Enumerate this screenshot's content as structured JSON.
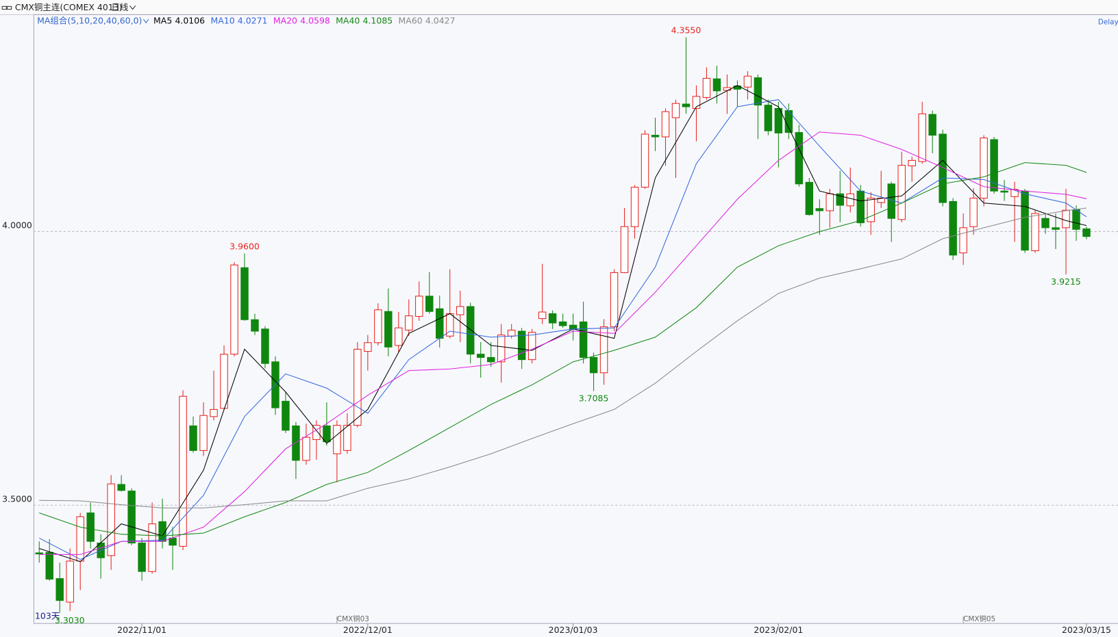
{
  "chart_data": {
    "type": "candlestick",
    "title": "CMX铜主连(COMEX 4013)",
    "period": "日线",
    "indicator": "MA组合(5,10,20,40,60,0)",
    "status": "Delay",
    "count_label": "103天",
    "up_color": "#e8231f",
    "down_color": "#0f870f",
    "ylim": [
      3.284,
      4.397
    ],
    "yticks": [
      {
        "value": 4,
        "label": "4.0000"
      },
      {
        "value": 3.5,
        "label": "3.5000"
      }
    ],
    "grid": true,
    "categories": [
      null,
      null,
      null,
      null,
      null,
      null,
      null,
      null,
      null,
      null,
      "2022/11/01",
      null,
      null,
      null,
      null,
      null,
      null,
      null,
      null,
      null,
      null,
      null,
      null,
      null,
      null,
      null,
      null,
      null,
      null,
      null,
      null,
      null,
      "2022/12/01",
      null,
      null,
      null,
      null,
      null,
      null,
      null,
      null,
      null,
      null,
      null,
      null,
      null,
      null,
      null,
      null,
      null,
      null,
      null,
      "2023/01/03",
      null,
      null,
      null,
      null,
      null,
      null,
      null,
      null,
      null,
      null,
      null,
      null,
      null,
      null,
      null,
      null,
      null,
      null,
      null,
      "2023/02/01",
      null,
      null,
      null,
      null,
      null,
      null,
      null,
      null,
      null,
      null,
      null,
      null,
      null,
      null,
      null,
      null,
      null,
      null,
      null,
      null,
      null,
      null,
      null,
      null,
      null,
      null,
      null,
      null,
      null,
      "2023/03/15"
    ],
    "open": [
      3.413,
      3.414,
      3.366,
      3.323,
      3.398,
      3.486,
      3.431,
      3.408,
      3.538,
      3.526,
      3.431,
      3.379,
      3.47,
      3.44,
      3.425,
      3.645,
      3.6,
      3.662,
      3.677,
      3.776,
      3.934,
      3.839,
      3.822,
      3.762,
      3.69,
      3.645,
      3.582,
      3.62,
      3.645,
      3.594,
      3.6,
      3.646,
      3.781,
      3.797,
      3.854,
      3.792,
      3.82,
      3.845,
      3.882,
      3.859,
      3.809,
      3.848,
      3.863,
      3.776,
      3.77,
      3.762,
      3.809,
      3.818,
      3.766,
      3.841,
      3.85,
      3.835,
      3.829,
      3.835,
      3.77,
      3.742,
      3.826,
      3.925,
      4.009,
      4.081,
      4.176,
      4.173,
      4.208,
      4.233,
      4.225,
      4.245,
      4.279,
      4.258,
      4.266,
      4.264,
      4.281,
      4.231,
      4.225,
      4.221,
      4.181,
      4.09,
      4.042,
      4.038,
      4.069,
      4.047,
      4.074,
      4.018,
      4.053,
      4.087,
      4.022,
      4.12,
      4.128,
      4.214,
      4.178,
      4.055,
      3.961,
      4.009,
      4.061,
      4.168,
      4.074,
      4.064,
      4.074,
      3.965,
      4.024,
      4.007,
      4.007,
      4.04,
      4.005
    ],
    "high": [
      3.434,
      3.438,
      3.395,
      3.421,
      3.486,
      3.505,
      3.447,
      3.555,
      3.555,
      3.531,
      3.44,
      3.505,
      3.512,
      3.46,
      3.71,
      3.662,
      3.688,
      3.746,
      3.792,
      3.944,
      3.96,
      3.85,
      3.827,
      3.772,
      3.707,
      3.652,
      3.649,
      3.655,
      3.688,
      3.655,
      3.668,
      3.798,
      3.811,
      3.869,
      3.896,
      3.853,
      3.876,
      3.909,
      3.926,
      3.883,
      3.931,
      3.892,
      3.87,
      3.798,
      3.798,
      3.831,
      3.831,
      3.824,
      3.822,
      3.941,
      3.856,
      3.85,
      3.85,
      3.872,
      3.779,
      3.84,
      3.931,
      4.043,
      4.085,
      4.185,
      4.208,
      4.225,
      4.241,
      4.355,
      4.267,
      4.3,
      4.303,
      4.287,
      4.276,
      4.293,
      4.287,
      4.241,
      4.237,
      4.234,
      4.195,
      4.098,
      4.059,
      4.078,
      4.111,
      4.117,
      4.085,
      4.072,
      4.111,
      4.091,
      4.146,
      4.137,
      4.237,
      4.221,
      4.186,
      4.061,
      4.033,
      4.079,
      4.176,
      4.173,
      4.094,
      4.091,
      4.078,
      4.039,
      4.033,
      4.033,
      4.078,
      4.048,
      4.009
    ],
    "low": [
      3.395,
      3.362,
      3.303,
      3.307,
      3.345,
      3.421,
      3.366,
      3.382,
      3.525,
      3.427,
      3.362,
      3.375,
      3.421,
      3.382,
      3.418,
      3.596,
      3.59,
      3.655,
      3.675,
      3.772,
      3.837,
      3.811,
      3.75,
      3.665,
      3.632,
      3.548,
      3.574,
      3.583,
      3.609,
      3.542,
      3.594,
      3.642,
      3.746,
      3.792,
      3.772,
      3.779,
      3.809,
      3.837,
      3.85,
      3.788,
      3.805,
      3.798,
      3.759,
      3.733,
      3.753,
      3.724,
      3.805,
      3.749,
      3.759,
      3.831,
      3.822,
      3.824,
      3.801,
      3.759,
      3.7085,
      3.72,
      3.818,
      3.924,
      3.987,
      4.078,
      4.147,
      4.12,
      4.098,
      4.215,
      4.165,
      4.241,
      4.234,
      4.215,
      4.228,
      4.241,
      4.169,
      4.176,
      4.117,
      4.169,
      4.082,
      4.029,
      3.994,
      4.007,
      4.017,
      4.035,
      4.009,
      3.994,
      4.043,
      3.981,
      4.017,
      4.091,
      4.124,
      4.143,
      4.046,
      3.948,
      3.939,
      3.994,
      4.046,
      4.069,
      4.056,
      3.981,
      3.961,
      3.961,
      3.996,
      3.968,
      3.9215,
      3.983,
      3.986
    ],
    "close": [
      3.411,
      3.365,
      3.326,
      3.398,
      3.479,
      3.434,
      3.404,
      3.539,
      3.527,
      3.431,
      3.379,
      3.466,
      3.434,
      3.427,
      3.699,
      3.6,
      3.664,
      3.675,
      3.776,
      3.939,
      3.839,
      3.818,
      3.759,
      3.678,
      3.637,
      3.582,
      3.624,
      3.646,
      3.616,
      3.646,
      3.646,
      3.785,
      3.797,
      3.857,
      3.789,
      3.824,
      3.846,
      3.882,
      3.854,
      3.805,
      3.85,
      3.863,
      3.776,
      3.77,
      3.762,
      3.811,
      3.82,
      3.766,
      3.816,
      3.853,
      3.833,
      3.828,
      3.822,
      3.77,
      3.742,
      3.826,
      3.925,
      4.009,
      4.081,
      4.178,
      4.173,
      4.219,
      4.234,
      4.228,
      4.247,
      4.28,
      4.257,
      4.263,
      4.26,
      4.284,
      4.231,
      4.184,
      4.18,
      4.181,
      4.087,
      4.031,
      4.038,
      4.069,
      4.048,
      4.069,
      4.016,
      4.061,
      4.061,
      4.024,
      4.121,
      4.13,
      4.215,
      4.176,
      4.053,
      3.957,
      4.007,
      4.061,
      4.171,
      4.074,
      4.072,
      4.077,
      3.966,
      4.033,
      4.007,
      4.004,
      4.039,
      4.004,
      3.991
    ],
    "ma": [
      {
        "name": "MA5",
        "value": 4.0106,
        "color": "#000000",
        "x": [
          0,
          4,
          8,
          12,
          16,
          20,
          24,
          28,
          32,
          36,
          40,
          44,
          48,
          52,
          56,
          60,
          64,
          68,
          72,
          76,
          80,
          84,
          88,
          92,
          96,
          100,
          102
        ],
        "values": [
          3.421,
          3.397,
          3.466,
          3.444,
          3.564,
          3.785,
          3.707,
          3.613,
          3.675,
          3.814,
          3.85,
          3.792,
          3.783,
          3.822,
          3.805,
          4.098,
          4.228,
          4.267,
          4.228,
          4.074,
          4.056,
          4.065,
          4.13,
          4.052,
          4.046,
          4.02,
          4.011
        ]
      },
      {
        "name": "MA10",
        "value": 4.0271,
        "color": "#3366dd",
        "x": [
          0,
          4,
          8,
          12,
          16,
          20,
          24,
          28,
          32,
          36,
          40,
          44,
          48,
          52,
          56,
          60,
          64,
          68,
          72,
          76,
          80,
          84,
          88,
          92,
          96,
          100,
          102
        ],
        "values": [
          3.44,
          3.401,
          3.434,
          3.436,
          3.518,
          3.662,
          3.74,
          3.714,
          3.668,
          3.766,
          3.818,
          3.807,
          3.811,
          3.822,
          3.824,
          3.935,
          4.124,
          4.228,
          4.241,
          4.156,
          4.074,
          4.052,
          4.098,
          4.095,
          4.069,
          4.052,
          4.027
        ]
      },
      {
        "name": "MA20",
        "value": 4.0598,
        "color": "#e020e0",
        "x": [
          0,
          4,
          8,
          12,
          16,
          20,
          24,
          28,
          32,
          36,
          40,
          44,
          48,
          52,
          56,
          60,
          64,
          68,
          72,
          76,
          80,
          84,
          88,
          92,
          96,
          100,
          102
        ],
        "values": [
          3.41,
          3.41,
          3.434,
          3.434,
          3.46,
          3.525,
          3.603,
          3.649,
          3.701,
          3.746,
          3.749,
          3.757,
          3.785,
          3.818,
          3.814,
          3.889,
          3.974,
          4.059,
          4.13,
          4.182,
          4.176,
          4.15,
          4.117,
          4.082,
          4.074,
          4.068,
          4.06
        ]
      },
      {
        "name": "MA40",
        "value": 4.1085,
        "color": "#118811",
        "x": [
          0,
          4,
          8,
          12,
          16,
          20,
          24,
          28,
          32,
          36,
          40,
          44,
          48,
          52,
          56,
          60,
          64,
          68,
          72,
          76,
          80,
          84,
          88,
          92,
          96,
          100,
          102
        ],
        "values": [
          3.486,
          3.46,
          3.447,
          3.444,
          3.449,
          3.479,
          3.505,
          3.538,
          3.56,
          3.6,
          3.642,
          3.684,
          3.72,
          3.762,
          3.783,
          3.807,
          3.861,
          3.935,
          3.974,
          4.0,
          4.02,
          4.052,
          4.087,
          4.1,
          4.126,
          4.121,
          4.108
        ]
      },
      {
        "name": "MA60",
        "value": 4.0427,
        "color": "#888888",
        "x": [
          0,
          4,
          8,
          12,
          16,
          20,
          24,
          28,
          32,
          36,
          40,
          44,
          48,
          52,
          56,
          60,
          64,
          68,
          72,
          76,
          80,
          84,
          88,
          92,
          96,
          100,
          102
        ],
        "values": [
          3.509,
          3.508,
          3.501,
          3.495,
          3.495,
          3.501,
          3.508,
          3.508,
          3.531,
          3.548,
          3.57,
          3.594,
          3.622,
          3.649,
          3.675,
          3.723,
          3.781,
          3.837,
          3.887,
          3.915,
          3.932,
          3.95,
          3.987,
          4.007,
          4.026,
          4.038,
          4.043
        ]
      }
    ],
    "annotations": [
      {
        "x": 63,
        "value": 4.355,
        "label": "4.3550"
      },
      {
        "x": 20,
        "value": 3.96,
        "label": "3.9600"
      },
      {
        "x": 54,
        "value": 3.7085,
        "label": "3.7085"
      },
      {
        "x": 2,
        "value": 3.303,
        "label": "3.3030"
      },
      {
        "x": 100,
        "value": 3.9215,
        "label": "3.9215"
      }
    ],
    "markers": [
      {
        "x": 29,
        "label": "CMX铜03"
      },
      {
        "x": 90,
        "label": "CMX铜05"
      }
    ]
  }
}
